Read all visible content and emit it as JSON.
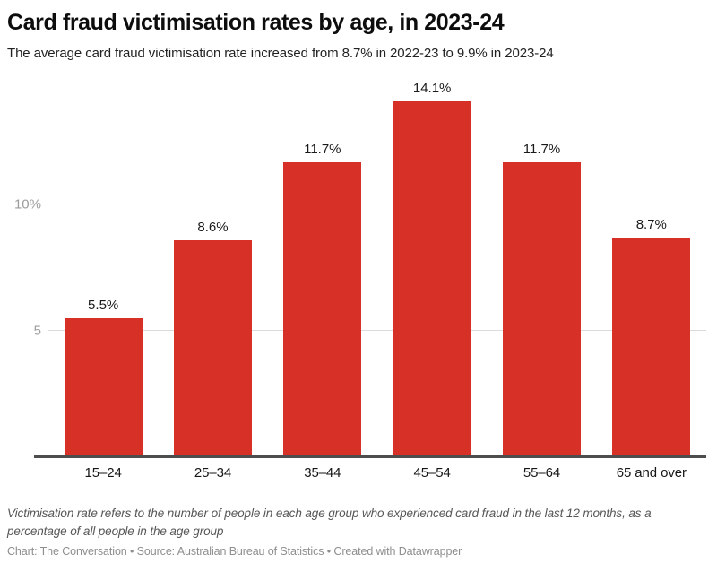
{
  "header": {
    "title": "Card fraud victimisation rates by age, in 2023-24",
    "subtitle": "The average card fraud victimisation rate increased from 8.7% in 2022-23 to 9.9% in 2023-24"
  },
  "chart_data": {
    "type": "bar",
    "title": "Card fraud victimisation rates by age, in 2023-24",
    "categories": [
      "15–24",
      "25–34",
      "35–44",
      "45–54",
      "55–64",
      "65 and over"
    ],
    "values": [
      5.5,
      8.6,
      11.7,
      14.1,
      11.7,
      8.7
    ],
    "value_labels": [
      "5.5%",
      "8.6%",
      "11.7%",
      "14.1%",
      "11.7%",
      "8.7%"
    ],
    "xlabel": "",
    "ylabel": "",
    "ylim": [
      0,
      15
    ],
    "yticks": [
      {
        "value": 5,
        "label": "5"
      },
      {
        "value": 10,
        "label": "10%"
      }
    ],
    "grid": "horizontal",
    "legend": "none"
  },
  "colors": {
    "bar": "#d73027",
    "grid": "#dcdcdc",
    "axis_line": "#4d4d4d",
    "tick_label": "#9c9c9c"
  },
  "footer": {
    "note": "Victimisation rate refers to the number of people in each age group who experienced card fraud in the last 12 months, as a percentage of all people in the age group",
    "attribution": "Chart: The Conversation • Source: Australian Bureau of Statistics • Created with Datawrapper"
  }
}
